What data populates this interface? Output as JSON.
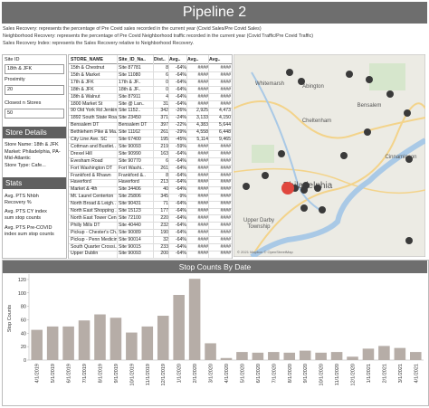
{
  "header": {
    "title": "Pipeline 2"
  },
  "descriptions": [
    "Sales Recovery: represents the percentage of Pre Covid sales recorded in the current year (Covid Sales/Pre Covid Sales)",
    "Neighborhood Recovery: represents the percentage of Pre Covid Neighborhood traffic recorded in the current year (Covid Traffic/Pre Covid Traffic)",
    "Sales Recovery Index: represents the Sales Recovery relative to Neighborhood Recovery."
  ],
  "filters": [
    {
      "label": "Site ID",
      "value": "18th & JFK"
    },
    {
      "label": "Proximity",
      "value": "20"
    },
    {
      "label": "Closest n Stores",
      "value": "50"
    }
  ],
  "store_details": {
    "title": "Store Details",
    "lines": [
      "Store Name: 18th & JFK",
      "Market: Philadelphia, PA-Mid-Atlantic",
      "Store Type: Cafe..."
    ]
  },
  "stats": {
    "title": "Stats",
    "lines": [
      "Avg. PTS Nhbh Recovery %",
      "Avg. PTS CY index sum stop counts",
      "Avg. PTS Pre-COVID index sum stop counts"
    ]
  },
  "table": {
    "columns": [
      "STORE_NAME",
      "Site_ID_Na..",
      "Dist..",
      "Avg..",
      "Avg..",
      "Avg.."
    ],
    "rows": [
      [
        "15th & Chestnut",
        "Site 87781",
        "8",
        "-64%",
        "####",
        "####"
      ],
      [
        "15th & Market",
        "Site 11080",
        "6",
        "-64%",
        "####",
        "####"
      ],
      [
        "17th & JFK",
        "17th & JF..",
        "0",
        "-64%",
        "####",
        "####"
      ],
      [
        "18th & JFK",
        "18th & JF..",
        "0",
        "-64%",
        "####",
        "####"
      ],
      [
        "18th & Walnut",
        "Site 87911",
        "4",
        "-64%",
        "####",
        "####"
      ],
      [
        "1800 Market St",
        "Site @ Lan..",
        "31",
        "-64%",
        "####",
        "####"
      ],
      [
        "90 Old York Rd Jenkin..",
        "Site 1152..",
        "342",
        "-26%",
        "2,925",
        "4,473"
      ],
      [
        "1892 South State Roa..",
        "Site 23450",
        "371",
        "-24%",
        "3,133",
        "4,150"
      ],
      [
        "Bensalem DT",
        "Bensalem DT",
        "397",
        "-22%",
        "4,383",
        "5,644"
      ],
      [
        "Bethlehem Pike & Ma..",
        "Site 11162",
        "261",
        "-29%",
        "4,558",
        "6,448"
      ],
      [
        "City Line Ave. SC",
        "Site 67400",
        "195",
        "-45%",
        "5,114",
        "9,465"
      ],
      [
        "Cottman and Bustlet..",
        "Site 90093",
        "219",
        "-59%",
        "####",
        "####"
      ],
      [
        "Drexel Hill",
        "Site 90990",
        "163",
        "-64%",
        "####",
        "####"
      ],
      [
        "Evesham Road",
        "Site 90770",
        "6",
        "-64%",
        "####",
        "####"
      ],
      [
        "Fort Washington DT",
        "Fort Washi..",
        "261",
        "-64%",
        "####",
        "####"
      ],
      [
        "Frankford & Rhawn",
        "Frankford &..",
        "8",
        "-64%",
        "####",
        "####"
      ],
      [
        "Haverford",
        "Haverford",
        "213",
        "-64%",
        "####",
        "####"
      ],
      [
        "Market & 4th",
        "Site 34406",
        "40",
        "-64%",
        "####",
        "####"
      ],
      [
        "Mt. Laurel Centerton",
        "Site 25806",
        "345",
        "-9%",
        "####",
        "####"
      ],
      [
        "North Broad & Leigh..",
        "Site 90431",
        "71",
        "-64%",
        "####",
        "####"
      ],
      [
        "North East Shopping ..",
        "Site 15123",
        "177",
        "-64%",
        "####",
        "####"
      ],
      [
        "North East Tower Cen..",
        "Site 72100",
        "220",
        "-64%",
        "####",
        "####"
      ],
      [
        "Philly Mills DT",
        "Site 40440",
        "232",
        "-64%",
        "####",
        "####"
      ],
      [
        "Pickup - Chester's Ch..",
        "Site 90089",
        "190",
        "-64%",
        "####",
        "####"
      ],
      [
        "Pickup - Penn Medicin..",
        "Site 90014",
        "32",
        "-64%",
        "####",
        "####"
      ],
      [
        "South Quarter Crossi..",
        "Site 90015",
        "233",
        "-64%",
        "####",
        "####"
      ],
      [
        "Upper Dublin",
        "Site 90093",
        "200",
        "-64%",
        "####",
        "####"
      ]
    ]
  },
  "map": {
    "labels": [
      "Whitemarsh",
      "Abington",
      "Bensalem",
      "Cheltenham",
      "Cinnaminson",
      "Philadelphia",
      "Upper Darby",
      "Township"
    ],
    "attribution": "© 2021 Mapbox © OpenStreetMap"
  },
  "chart_data": {
    "type": "bar",
    "title": "Stop Counts By Date",
    "y_label": "Stop Counts",
    "categories": [
      "4/1/2019",
      "5/1/2019",
      "6/1/2019",
      "7/1/2019",
      "8/1/2019",
      "9/1/2019",
      "10/1/2019",
      "11/1/2019",
      "12/1/2019",
      "1/1/2020",
      "2/1/2020",
      "3/1/2020",
      "4/1/2020",
      "5/1/2020",
      "6/1/2020",
      "7/1/2020",
      "8/1/2020",
      "9/1/2020",
      "10/1/2020",
      "11/1/2020",
      "12/1/2020",
      "1/1/2021",
      "2/1/2021",
      "3/1/2021",
      "4/1/2021"
    ],
    "values": [
      45,
      50,
      50,
      59,
      68,
      63,
      41,
      50,
      66,
      97,
      121,
      25,
      3,
      12,
      11,
      12,
      11,
      14,
      11,
      12,
      5,
      17,
      21,
      18,
      12
    ],
    "color": "#b6ada7",
    "ylim": [
      0,
      128
    ],
    "yticks": [
      0,
      20,
      40,
      60,
      80,
      100,
      120
    ]
  }
}
